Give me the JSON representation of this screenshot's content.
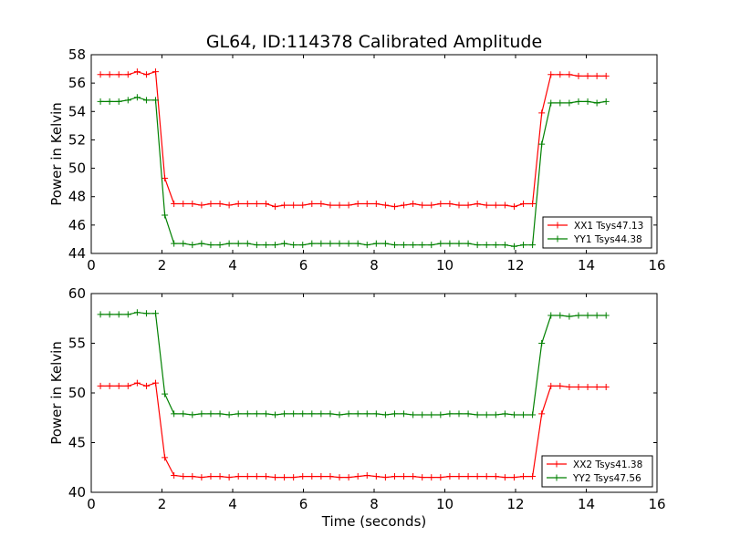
{
  "title": "GL64, ID:114378 Calibrated Amplitude",
  "chart_data": [
    {
      "type": "line",
      "title": "GL64, ID:114378 Calibrated Amplitude",
      "xlabel": "",
      "ylabel": "Power in Kelvin",
      "xlim": [
        0,
        16
      ],
      "ylim": [
        44,
        58
      ],
      "xticks": [
        0,
        2,
        4,
        6,
        8,
        10,
        12,
        14,
        16
      ],
      "yticks": [
        44,
        46,
        48,
        50,
        52,
        54,
        56,
        58
      ],
      "legend_position": "lower-right",
      "x": [
        0.26,
        0.52,
        0.78,
        1.04,
        1.3,
        1.56,
        1.82,
        2.08,
        2.34,
        2.6,
        2.86,
        3.12,
        3.38,
        3.64,
        3.9,
        4.16,
        4.42,
        4.68,
        4.94,
        5.2,
        5.46,
        5.72,
        5.98,
        6.24,
        6.5,
        6.76,
        7.02,
        7.28,
        7.54,
        7.8,
        8.06,
        8.32,
        8.58,
        8.84,
        9.1,
        9.36,
        9.62,
        9.88,
        10.14,
        10.4,
        10.66,
        10.92,
        11.18,
        11.44,
        11.7,
        11.96,
        12.22,
        12.48,
        12.74,
        13.0,
        13.26,
        13.52,
        13.78,
        14.04,
        14.3,
        14.56
      ],
      "series": [
        {
          "name": "XX1 Tsys47.13",
          "color": "#ff0000",
          "values": [
            56.6,
            56.6,
            56.6,
            56.6,
            56.8,
            56.6,
            56.8,
            49.3,
            47.5,
            47.5,
            47.5,
            47.4,
            47.5,
            47.5,
            47.4,
            47.5,
            47.5,
            47.5,
            47.5,
            47.3,
            47.4,
            47.4,
            47.4,
            47.5,
            47.5,
            47.4,
            47.4,
            47.4,
            47.5,
            47.5,
            47.5,
            47.4,
            47.3,
            47.4,
            47.5,
            47.4,
            47.4,
            47.5,
            47.5,
            47.4,
            47.4,
            47.5,
            47.4,
            47.4,
            47.4,
            47.3,
            47.5,
            47.5,
            53.9,
            56.6,
            56.6,
            56.6,
            56.5,
            56.5,
            56.5,
            56.5
          ]
        },
        {
          "name": "YY1 Tsys44.38",
          "color": "#008000",
          "values": [
            54.7,
            54.7,
            54.7,
            54.8,
            55.0,
            54.8,
            54.8,
            46.7,
            44.7,
            44.7,
            44.6,
            44.7,
            44.6,
            44.6,
            44.7,
            44.7,
            44.7,
            44.6,
            44.6,
            44.6,
            44.7,
            44.6,
            44.6,
            44.7,
            44.7,
            44.7,
            44.7,
            44.7,
            44.7,
            44.6,
            44.7,
            44.7,
            44.6,
            44.6,
            44.6,
            44.6,
            44.6,
            44.7,
            44.7,
            44.7,
            44.7,
            44.6,
            44.6,
            44.6,
            44.6,
            44.5,
            44.6,
            44.6,
            51.7,
            54.6,
            54.6,
            54.6,
            54.7,
            54.7,
            54.6,
            54.7
          ]
        }
      ]
    },
    {
      "type": "line",
      "title": "",
      "xlabel": "Time (seconds)",
      "ylabel": "Power in Kelvin",
      "xlim": [
        0,
        16
      ],
      "ylim": [
        40,
        60
      ],
      "xticks": [
        0,
        2,
        4,
        6,
        8,
        10,
        12,
        14,
        16
      ],
      "yticks": [
        40,
        45,
        50,
        55,
        60
      ],
      "legend_position": "lower-right",
      "x": [
        0.26,
        0.52,
        0.78,
        1.04,
        1.3,
        1.56,
        1.82,
        2.08,
        2.34,
        2.6,
        2.86,
        3.12,
        3.38,
        3.64,
        3.9,
        4.16,
        4.42,
        4.68,
        4.94,
        5.2,
        5.46,
        5.72,
        5.98,
        6.24,
        6.5,
        6.76,
        7.02,
        7.28,
        7.54,
        7.8,
        8.06,
        8.32,
        8.58,
        8.84,
        9.1,
        9.36,
        9.62,
        9.88,
        10.14,
        10.4,
        10.66,
        10.92,
        11.18,
        11.44,
        11.7,
        11.96,
        12.22,
        12.48,
        12.74,
        13.0,
        13.26,
        13.52,
        13.78,
        14.04,
        14.3,
        14.56
      ],
      "series": [
        {
          "name": "XX2 Tsys41.38",
          "color": "#ff0000",
          "values": [
            50.7,
            50.7,
            50.7,
            50.7,
            51.0,
            50.7,
            51.0,
            43.5,
            41.7,
            41.6,
            41.6,
            41.5,
            41.6,
            41.6,
            41.5,
            41.6,
            41.6,
            41.6,
            41.6,
            41.5,
            41.5,
            41.5,
            41.6,
            41.6,
            41.6,
            41.6,
            41.5,
            41.5,
            41.6,
            41.7,
            41.6,
            41.5,
            41.6,
            41.6,
            41.6,
            41.5,
            41.5,
            41.5,
            41.6,
            41.6,
            41.6,
            41.6,
            41.6,
            41.6,
            41.5,
            41.5,
            41.6,
            41.6,
            47.9,
            50.7,
            50.7,
            50.6,
            50.6,
            50.6,
            50.6,
            50.6
          ]
        },
        {
          "name": "YY2 Tsys47.56",
          "color": "#008000",
          "values": [
            57.9,
            57.9,
            57.9,
            57.9,
            58.1,
            58.0,
            58.0,
            49.9,
            47.9,
            47.9,
            47.8,
            47.9,
            47.9,
            47.9,
            47.8,
            47.9,
            47.9,
            47.9,
            47.9,
            47.8,
            47.9,
            47.9,
            47.9,
            47.9,
            47.9,
            47.9,
            47.8,
            47.9,
            47.9,
            47.9,
            47.9,
            47.8,
            47.9,
            47.9,
            47.8,
            47.8,
            47.8,
            47.8,
            47.9,
            47.9,
            47.9,
            47.8,
            47.8,
            47.8,
            47.9,
            47.8,
            47.8,
            47.8,
            55.0,
            57.8,
            57.8,
            57.7,
            57.8,
            57.8,
            57.8,
            57.8
          ]
        }
      ]
    }
  ]
}
